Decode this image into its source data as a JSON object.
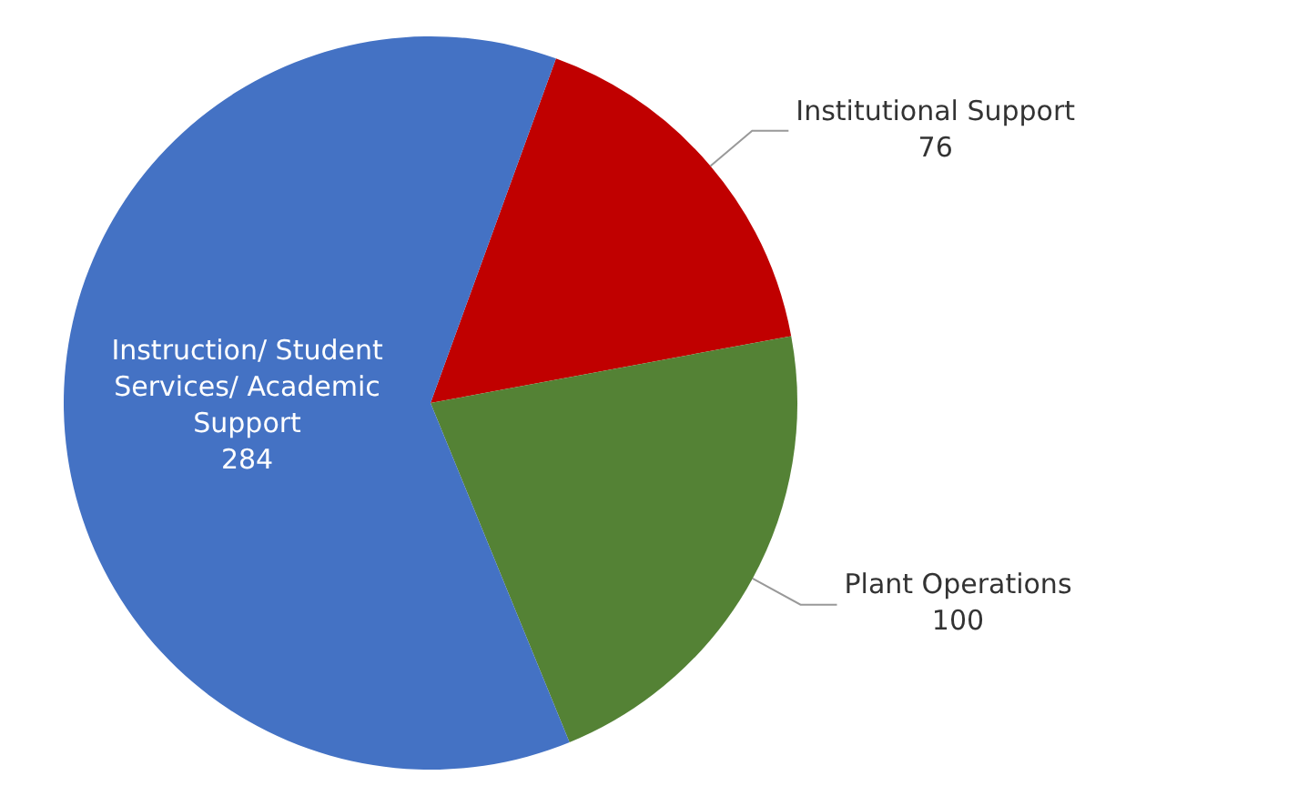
{
  "chart_data": {
    "type": "pie",
    "categories": [
      "Institutional Support",
      "Plant Operations",
      "Instruction/ Student Services/ Academic Support"
    ],
    "values": [
      76,
      100,
      284
    ],
    "colors": [
      "#c00000",
      "#548235",
      "#4472c4"
    ],
    "data_labels": true,
    "legend": false
  }
}
